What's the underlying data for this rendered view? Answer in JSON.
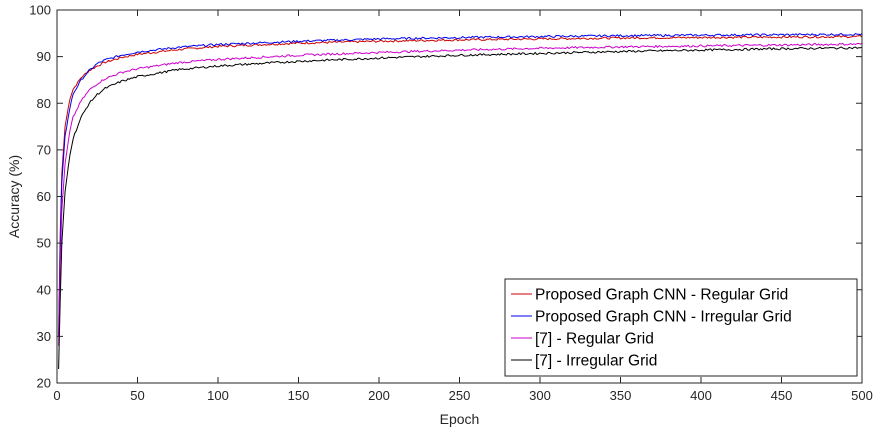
{
  "chart_data": {
    "type": "line",
    "title": "",
    "xlabel": "Epoch",
    "ylabel": "Accuracy (%)",
    "xlim": [
      0,
      500
    ],
    "ylim": [
      20,
      100
    ],
    "xticks": [
      0,
      50,
      100,
      150,
      200,
      250,
      300,
      350,
      400,
      450,
      500
    ],
    "yticks": [
      20,
      30,
      40,
      50,
      60,
      70,
      80,
      90,
      100
    ],
    "grid": false,
    "legend_position": "bottom-right",
    "series": [
      {
        "name": "Proposed Graph CNN - Regular Grid",
        "color": "#cc0000",
        "x": [
          1,
          2,
          3,
          5,
          8,
          10,
          15,
          20,
          25,
          30,
          40,
          50,
          75,
          100,
          150,
          200,
          250,
          300,
          350,
          400,
          450,
          500
        ],
        "y": [
          30,
          52,
          65,
          75,
          81,
          83,
          85.5,
          87,
          88,
          88.8,
          89.8,
          90.5,
          91.5,
          92.2,
          92.9,
          93.3,
          93.6,
          93.8,
          94.0,
          94.1,
          94.2,
          94.3
        ]
      },
      {
        "name": "Proposed Graph CNN - Irregular Grid",
        "color": "#0000ee",
        "x": [
          1,
          2,
          3,
          5,
          8,
          10,
          15,
          20,
          25,
          30,
          40,
          50,
          75,
          100,
          150,
          200,
          250,
          300,
          350,
          400,
          450,
          500
        ],
        "y": [
          30,
          50,
          63,
          73,
          79,
          82,
          85,
          87,
          88.5,
          89.3,
          90.3,
          91,
          92,
          92.6,
          93.3,
          93.8,
          94.1,
          94.3,
          94.5,
          94.6,
          94.7,
          94.8
        ]
      },
      {
        "name": "[7] - Regular Grid",
        "color": "#cc00cc",
        "x": [
          1,
          2,
          3,
          5,
          8,
          10,
          15,
          20,
          25,
          30,
          40,
          50,
          75,
          100,
          150,
          200,
          250,
          300,
          350,
          400,
          450,
          500
        ],
        "y": [
          28,
          45,
          57,
          67,
          74,
          77,
          80.5,
          82.8,
          84.2,
          85.3,
          86.6,
          87.4,
          88.7,
          89.4,
          90.3,
          90.9,
          91.4,
          91.8,
          92.1,
          92.3,
          92.5,
          92.7
        ]
      },
      {
        "name": "[7] - Irregular Grid",
        "color": "#000000",
        "x": [
          1,
          2,
          3,
          5,
          8,
          10,
          15,
          20,
          25,
          30,
          40,
          50,
          75,
          100,
          150,
          200,
          250,
          300,
          350,
          400,
          450,
          500
        ],
        "y": [
          23,
          38,
          50,
          61,
          69,
          72.5,
          77,
          80,
          81.9,
          83.2,
          84.7,
          85.7,
          87.2,
          88.0,
          89.0,
          89.7,
          90.3,
          90.7,
          91.1,
          91.4,
          91.7,
          91.9
        ]
      }
    ]
  }
}
